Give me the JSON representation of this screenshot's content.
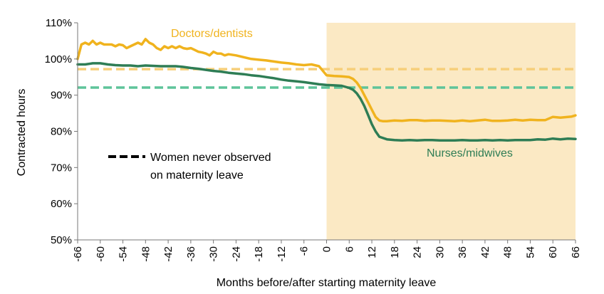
{
  "chart_data": {
    "type": "line",
    "xlabel": "Months before/after starting maternity leave",
    "ylabel": "Contracted hours",
    "xlim": [
      -66,
      66
    ],
    "ylim": [
      50,
      110
    ],
    "x_ticks": [
      "-66",
      "-60",
      "-54",
      "-48",
      "-42",
      "-36",
      "-30",
      "-24",
      "-18",
      "-12",
      "-6",
      "0",
      "6",
      "12",
      "18",
      "24",
      "30",
      "36",
      "42",
      "48",
      "54",
      "60",
      "66"
    ],
    "x_tick_values": [
      -66,
      -60,
      -54,
      -48,
      -42,
      -36,
      -30,
      -24,
      -18,
      -12,
      -6,
      0,
      6,
      12,
      18,
      24,
      30,
      36,
      42,
      48,
      54,
      60,
      66
    ],
    "y_ticks": [
      "50%",
      "60%",
      "70%",
      "80%",
      "90%",
      "100%",
      "110%"
    ],
    "y_tick_values": [
      50,
      60,
      70,
      80,
      90,
      100,
      110
    ],
    "shaded_region": {
      "from": 0,
      "to": 66,
      "color": "#fbe9c4"
    },
    "series": [
      {
        "name": "Doctors/dentists",
        "color": "#f0b31e",
        "x": [
          -66,
          -65,
          -64,
          -63,
          -62,
          -61,
          -60,
          -59,
          -58,
          -57,
          -56,
          -55,
          -54,
          -53,
          -52,
          -51,
          -50,
          -49,
          -48,
          -47,
          -46,
          -45,
          -44,
          -43,
          -42,
          -41,
          -40,
          -39,
          -38,
          -37,
          -36,
          -35,
          -34,
          -33,
          -32,
          -31,
          -30,
          -29,
          -28,
          -27,
          -26,
          -24,
          -22,
          -20,
          -18,
          -16,
          -14,
          -12,
          -10,
          -8,
          -6,
          -4,
          -2,
          0,
          2,
          4,
          6,
          7,
          8,
          9,
          10,
          11,
          12,
          13,
          14,
          15,
          16,
          18,
          20,
          22,
          24,
          26,
          28,
          30,
          32,
          34,
          36,
          38,
          40,
          42,
          44,
          46,
          48,
          50,
          52,
          54,
          56,
          58,
          60,
          62,
          64,
          65,
          66
        ],
        "values": [
          100,
          104,
          104.5,
          104,
          105,
          104,
          104.5,
          104,
          104,
          104,
          103.5,
          104,
          103.8,
          103,
          103.5,
          104,
          104.5,
          104,
          105.5,
          104.5,
          104,
          103,
          102.5,
          103.5,
          103,
          103.5,
          103,
          103.5,
          103,
          102.8,
          103,
          102.5,
          102,
          101.8,
          101.5,
          101,
          102,
          101.5,
          101.5,
          101,
          101.3,
          101,
          100.5,
          100,
          99.8,
          99.6,
          99.3,
          99,
          98.8,
          98.5,
          98.3,
          98.5,
          98,
          95.5,
          95.3,
          95.2,
          95,
          94.5,
          93.5,
          92,
          90,
          88,
          86,
          84,
          83,
          82.8,
          82.8,
          83,
          82.9,
          83.1,
          83.1,
          82.9,
          83,
          83,
          82.9,
          82.8,
          83,
          82.8,
          83,
          83.2,
          82.9,
          82.9,
          83,
          83.2,
          83,
          83.2,
          83.1,
          83.1,
          84,
          83.8,
          84,
          84.1,
          84.4
        ],
        "label_pos": "top"
      },
      {
        "name": "Nurses/midwives",
        "color": "#2e7d55",
        "x": [
          -66,
          -64,
          -62,
          -60,
          -58,
          -56,
          -54,
          -52,
          -50,
          -48,
          -46,
          -44,
          -42,
          -40,
          -38,
          -36,
          -34,
          -32,
          -30,
          -28,
          -26,
          -24,
          -22,
          -20,
          -18,
          -16,
          -14,
          -12,
          -10,
          -8,
          -6,
          -4,
          -2,
          0,
          2,
          4,
          6,
          7,
          8,
          9,
          10,
          11,
          12,
          13,
          14,
          16,
          18,
          20,
          22,
          24,
          26,
          28,
          30,
          32,
          34,
          36,
          38,
          40,
          42,
          44,
          46,
          48,
          50,
          52,
          54,
          56,
          58,
          60,
          62,
          64,
          66
        ],
        "values": [
          98.5,
          98.5,
          98.8,
          98.8,
          98.5,
          98.3,
          98.2,
          98.2,
          98,
          98.2,
          98.1,
          98,
          98,
          98,
          97.8,
          97.5,
          97.3,
          97,
          96.7,
          96.5,
          96.2,
          96,
          95.8,
          95.5,
          95.3,
          95,
          94.7,
          94.3,
          94,
          93.8,
          93.6,
          93.3,
          93,
          92.8,
          92.7,
          92.6,
          92,
          91.5,
          90.5,
          89,
          87,
          84.5,
          82,
          80,
          78.5,
          77.8,
          77.6,
          77.5,
          77.6,
          77.5,
          77.6,
          77.6,
          77.5,
          77.5,
          77.5,
          77.6,
          77.5,
          77.5,
          77.6,
          77.5,
          77.6,
          77.5,
          77.6,
          77.6,
          77.6,
          77.8,
          77.7,
          78,
          77.8,
          78,
          77.9
        ]
      }
    ],
    "reference_lines": [
      {
        "series": "Doctors/dentists",
        "value": 97.2,
        "color": "#f6cf7a",
        "style": "dashed"
      },
      {
        "series": "Nurses/midwives",
        "value": 92.1,
        "color": "#5ec49a",
        "style": "dashed"
      }
    ],
    "legend": {
      "text_line1": "Women never observed",
      "text_line2": "on maternity leave",
      "style": "dashed",
      "color": "#000000"
    }
  }
}
